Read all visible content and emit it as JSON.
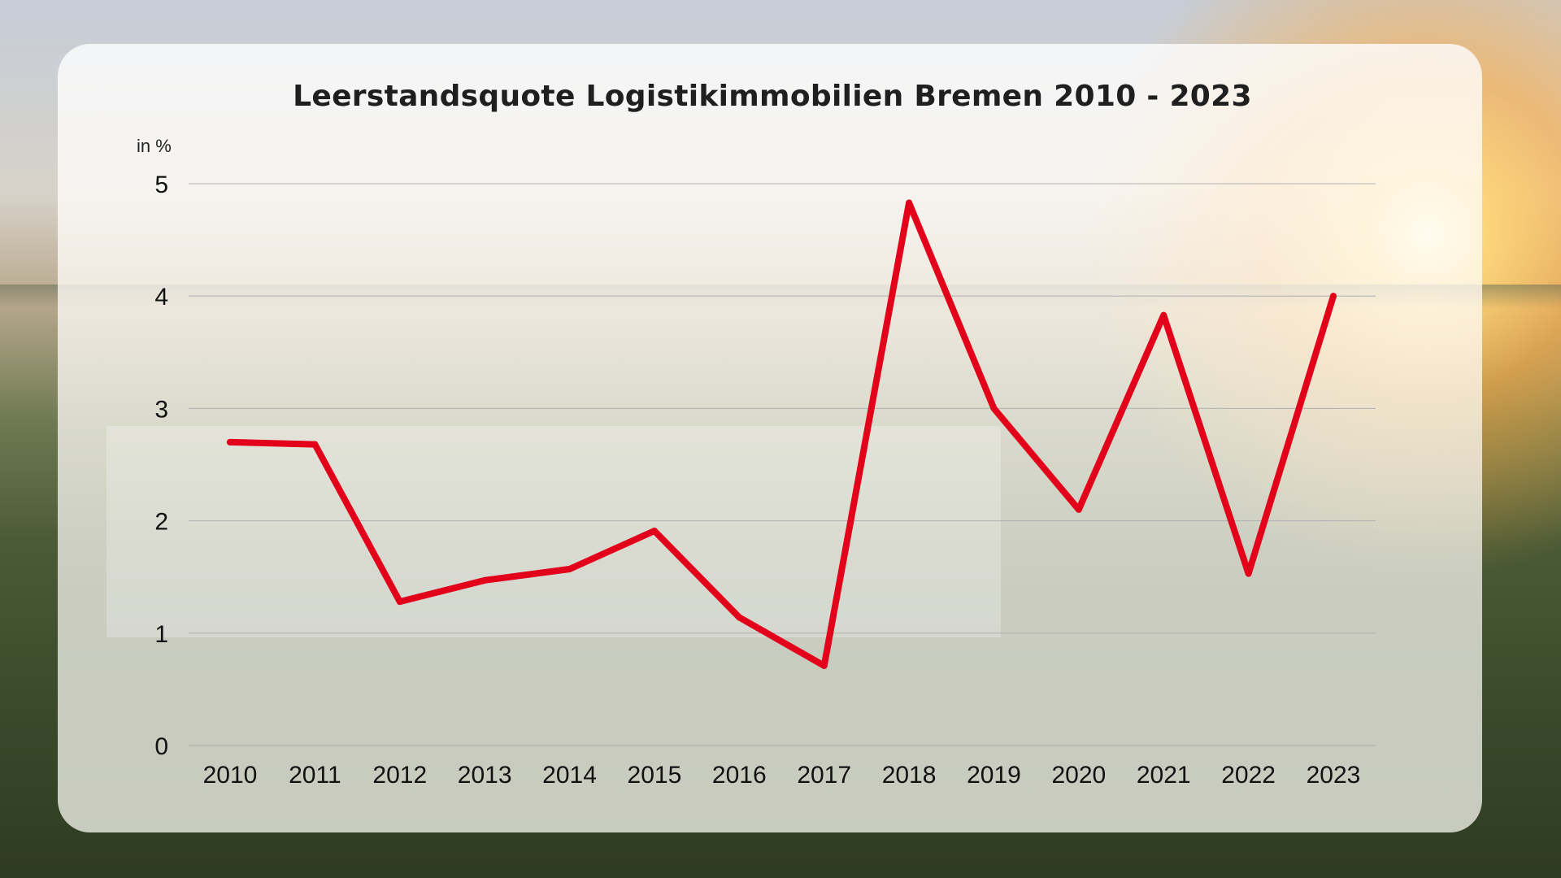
{
  "chart_data": {
    "type": "line",
    "title": "Leerstandsquote Logistikimmobilien Bremen 2010 - 2023",
    "ylabel": "in %",
    "xlabel": "",
    "x": [
      "2010",
      "2011",
      "2012",
      "2013",
      "2014",
      "2015",
      "2016",
      "2017",
      "2018",
      "2019",
      "2020",
      "2021",
      "2022",
      "2023"
    ],
    "series": [
      {
        "values": [
          2.7,
          2.68,
          1.28,
          1.47,
          1.57,
          1.91,
          1.14,
          0.71,
          4.83,
          3.0,
          2.1,
          3.83,
          1.53,
          4.0
        ]
      }
    ],
    "ylim": [
      0,
      5
    ],
    "yticks": [
      0,
      1,
      2,
      3,
      4,
      5
    ],
    "grid": true,
    "line_color": "#e2001a",
    "grid_color": "#b4b4b4"
  }
}
